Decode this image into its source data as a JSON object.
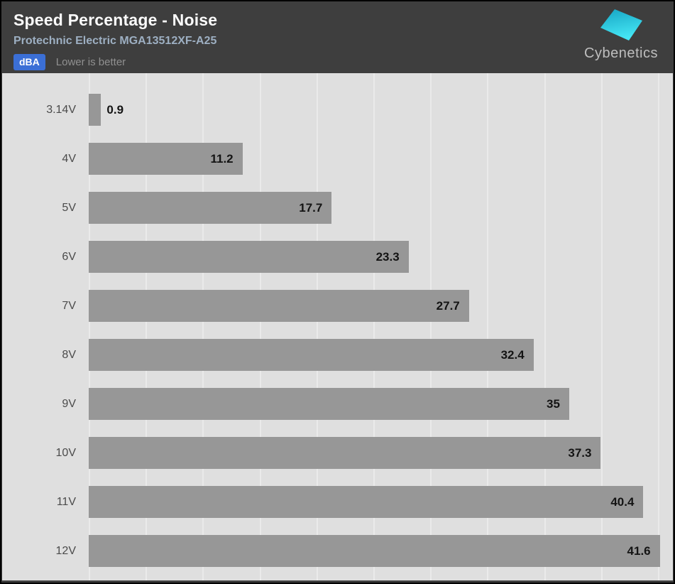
{
  "header": {
    "title": "Speed Percentage - Noise",
    "subtitle": "Protechnic Electric MGA13512XF-A25",
    "unit_badge": "dBA",
    "note": "Lower is better",
    "logo_text": "Cybenetics"
  },
  "colors": {
    "header_bg": "#3E3E3E",
    "chart_bg": "#DFDFDF",
    "gridline": "#EAEAEA",
    "bar": "#979797",
    "badge_blue": "#3B6FD6",
    "subtitle_text": "#9DAFC2",
    "note_text": "#909090",
    "value_text": "#141414",
    "category_text": "#4B4B4B",
    "logo_cyan_top": "#16A5C4",
    "logo_cyan_bottom": "#45E6F4"
  },
  "chart_data": {
    "type": "bar",
    "orientation": "horizontal",
    "title": "Speed Percentage - Noise",
    "subtitle": "Protechnic Electric MGA13512XF-A25",
    "unit": "dBA",
    "note": "Lower is better",
    "categories": [
      "3.14V",
      "4V",
      "5V",
      "6V",
      "7V",
      "8V",
      "9V",
      "10V",
      "11V",
      "12V"
    ],
    "values": [
      0.9,
      11.2,
      17.7,
      23.3,
      27.7,
      32.4,
      35,
      37.3,
      40.4,
      41.6
    ],
    "value_labels": [
      "0.9",
      "11.2",
      "17.7",
      "23.3",
      "27.7",
      "32.4",
      "35",
      "37.3",
      "40.4",
      "41.6"
    ],
    "xlim": [
      0,
      42.55
    ],
    "grid": "vertical",
    "gridline_count": 11,
    "legend": "none"
  }
}
